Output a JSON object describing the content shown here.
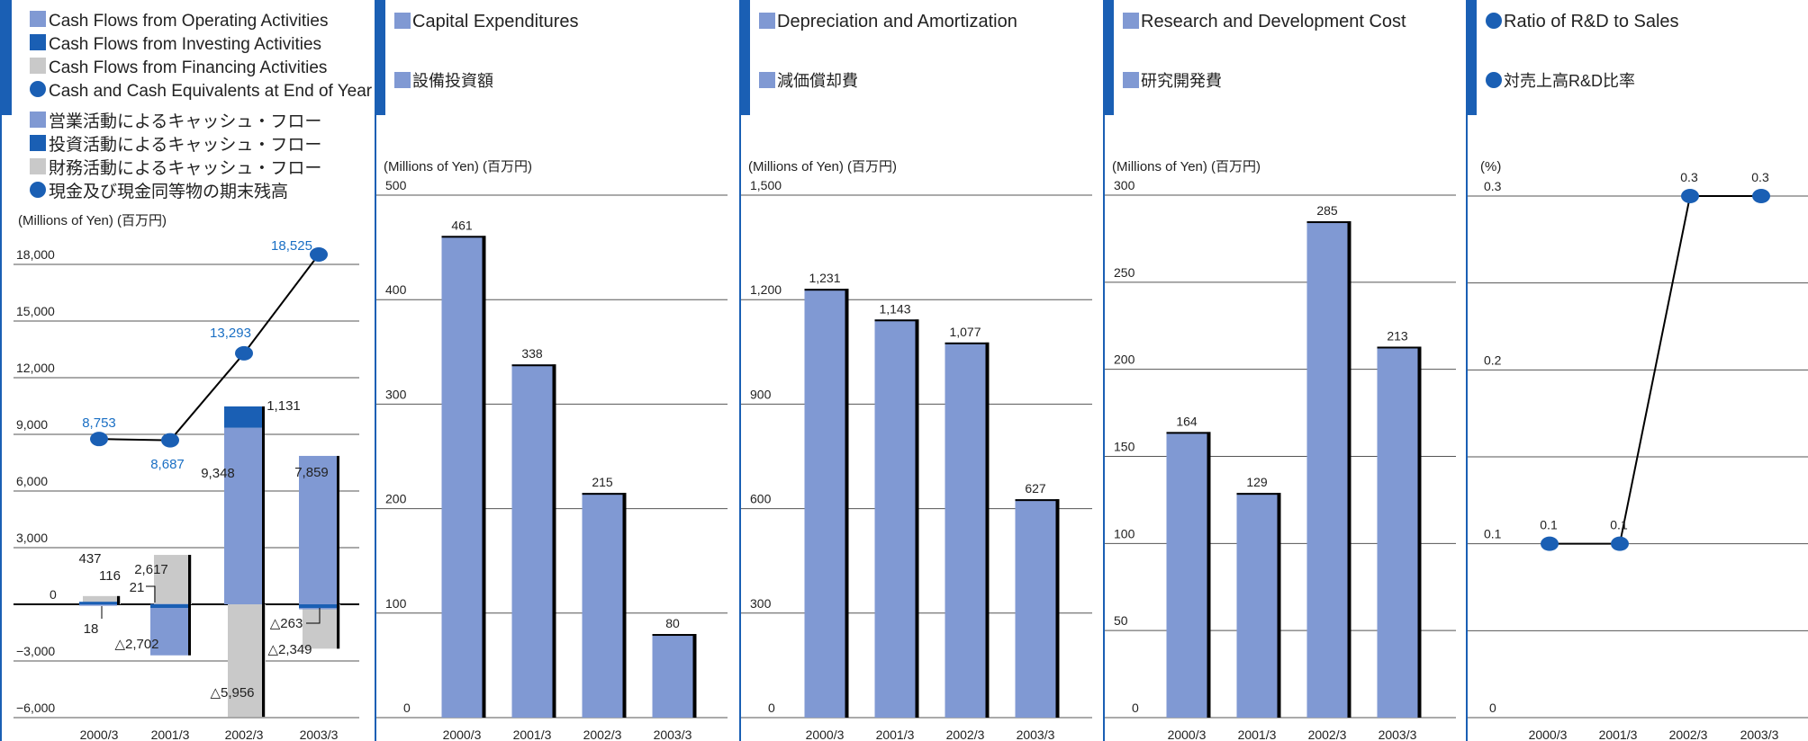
{
  "colors": {
    "accent_bar": "#1a5fb4",
    "operating": "#8099d3",
    "investing": "#1a5fb4",
    "financing": "#c9c9c9",
    "cash_line_point": "#1a5fb4",
    "bar_fill": "#8099d3",
    "bar_shadow": "#000000",
    "blue_label": "#1a6fc4"
  },
  "panel1": {
    "legend": [
      {
        "marker": "square",
        "color": "#8099d3",
        "label": "Cash Flows from Operating Activities"
      },
      {
        "marker": "square",
        "color": "#1a5fb4",
        "label": "Cash Flows from Investing Activities"
      },
      {
        "marker": "square",
        "color": "#c9c9c9",
        "label": "Cash Flows from Financing Activities"
      },
      {
        "marker": "circle",
        "color": "#1a5fb4",
        "label": "Cash and Cash Equivalents at End of Year"
      },
      {
        "marker": "square",
        "color": "#8099d3",
        "label": "営業活動によるキャッシュ・フロー"
      },
      {
        "marker": "square",
        "color": "#1a5fb4",
        "label": "投資活動によるキャッシュ・フロー"
      },
      {
        "marker": "square",
        "color": "#c9c9c9",
        "label": "財務活動によるキャッシュ・フロー"
      },
      {
        "marker": "circle",
        "color": "#1a5fb4",
        "label": "現金及び現金同等物の期末残高"
      }
    ],
    "unit": "(Millions of Yen) (百万円)"
  },
  "panel2": {
    "title": "Capital Expenditures",
    "subtitle": "設備投資額",
    "unit": "(Millions of Yen) (百万円)"
  },
  "panel3": {
    "title": "Depreciation and Amortization",
    "subtitle": "減価償却費",
    "unit": "(Millions of Yen) (百万円)"
  },
  "panel4": {
    "title": "Research and Development Cost",
    "subtitle": "研究開発費",
    "unit": "(Millions of Yen) (百万円)"
  },
  "panel5": {
    "title": "Ratio of R&D to Sales",
    "subtitle": "対売上高R&D比率",
    "unit": "(%)"
  },
  "chart_data": [
    {
      "type": "bar",
      "categories": [
        "2000/3",
        "2001/3",
        "2002/3",
        "2003/3"
      ],
      "ylim": [
        -6000,
        18000
      ],
      "yticks": [
        18000,
        15000,
        12000,
        9000,
        6000,
        3000,
        0,
        -3000,
        -6000
      ],
      "ytick_labels": [
        "18,000",
        "15,000",
        "12,000",
        "9,000",
        "6,000",
        "3,000",
        "0",
        "−3,000",
        "−6,000"
      ],
      "series": [
        {
          "name": "Cash Flows from Operating Activities",
          "values": [
            18,
            21,
            9348,
            7859
          ]
        },
        {
          "name": "Cash Flows from Investing Activities",
          "values": [
            116,
            -2702,
            1131,
            -263
          ]
        },
        {
          "name": "Cash Flows from Financing Activities",
          "values": [
            437,
            2617,
            -5956,
            -2349
          ]
        },
        {
          "name": "Cash and Cash Equivalents at End of Year",
          "type": "line",
          "values": [
            8753,
            8687,
            13293,
            18525
          ]
        }
      ],
      "labels": {
        "operating": [
          "18",
          "21",
          "9,348",
          "7,859"
        ],
        "investing": [
          "116",
          "△2,702",
          "1,131",
          "△263"
        ],
        "financing": [
          "437",
          "2,617",
          "△5,956",
          "△2,349"
        ],
        "cash": [
          "8,753",
          "8,687",
          "13,293",
          "18,525"
        ]
      },
      "grid": true
    },
    {
      "type": "bar",
      "title": "Capital Expenditures",
      "categories": [
        "2000/3",
        "2001/3",
        "2002/3",
        "2003/3"
      ],
      "values": [
        461,
        338,
        215,
        80
      ],
      "value_labels": [
        "461",
        "338",
        "215",
        "80"
      ],
      "ylim": [
        0,
        500
      ],
      "yticks": [
        500,
        400,
        300,
        200,
        100,
        0
      ],
      "ytick_labels": [
        "500",
        "400",
        "300",
        "200",
        "100",
        "0"
      ],
      "grid": true
    },
    {
      "type": "bar",
      "title": "Depreciation and Amortization",
      "categories": [
        "2000/3",
        "2001/3",
        "2002/3",
        "2003/3"
      ],
      "values": [
        1231,
        1143,
        1077,
        627
      ],
      "value_labels": [
        "1,231",
        "1,143",
        "1,077",
        "627"
      ],
      "ylim": [
        0,
        1500
      ],
      "yticks": [
        1500,
        1200,
        900,
        600,
        300,
        0
      ],
      "ytick_labels": [
        "1,500",
        "1,200",
        "900",
        "600",
        "300",
        "0"
      ],
      "grid": true
    },
    {
      "type": "bar",
      "title": "Research and Development Cost",
      "categories": [
        "2000/3",
        "2001/3",
        "2002/3",
        "2003/3"
      ],
      "values": [
        164,
        129,
        285,
        213
      ],
      "value_labels": [
        "164",
        "129",
        "285",
        "213"
      ],
      "ylim": [
        0,
        300
      ],
      "yticks": [
        300,
        250,
        200,
        150,
        100,
        50,
        0
      ],
      "ytick_labels": [
        "300",
        "250",
        "200",
        "150",
        "100",
        "50",
        "0"
      ],
      "grid": true
    },
    {
      "type": "line",
      "title": "Ratio of R&D to Sales",
      "categories": [
        "2000/3",
        "2001/3",
        "2002/3",
        "2003/3"
      ],
      "values": [
        0.1,
        0.1,
        0.3,
        0.3
      ],
      "value_labels": [
        "0.1",
        "0.1",
        "0.3",
        "0.3"
      ],
      "ylim": [
        0,
        0.3
      ],
      "yticks": [
        0.3,
        0.2,
        0.1,
        0
      ],
      "ytick_labels": [
        "0.3",
        "0.2",
        "0.1",
        "0"
      ],
      "grid": true
    }
  ]
}
